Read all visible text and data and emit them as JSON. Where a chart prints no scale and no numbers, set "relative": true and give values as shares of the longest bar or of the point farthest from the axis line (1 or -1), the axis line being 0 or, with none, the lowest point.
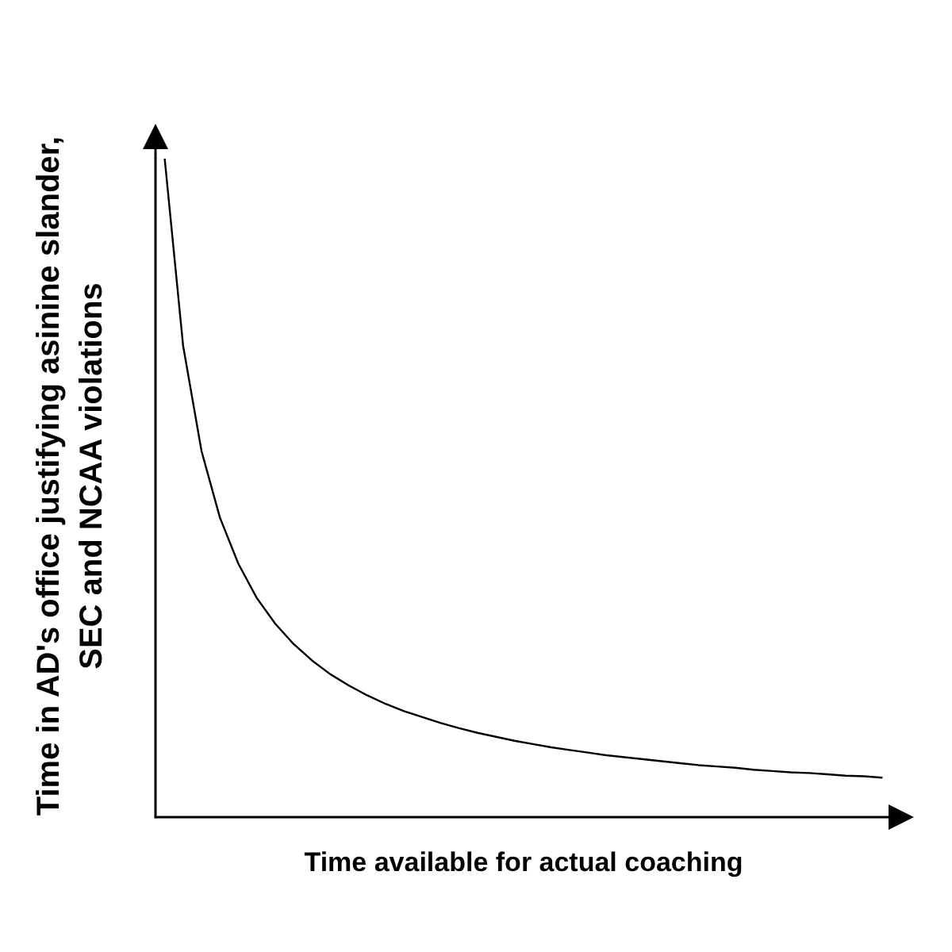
{
  "chart_data": {
    "type": "line",
    "relative": true,
    "color": "#000000",
    "marker": "none",
    "grid": false,
    "xlabel": "Time available for actual coaching",
    "ylabel": "Time in AD's office justifying asinine slander, SEC and NCAA violations",
    "categories": [
      null,
      null,
      null,
      null,
      null,
      null,
      null,
      null,
      null,
      null,
      null,
      null,
      null,
      null,
      null,
      null,
      null,
      null,
      null,
      null,
      null,
      null,
      null,
      null,
      null,
      null,
      null,
      null,
      null,
      null,
      null,
      null,
      null,
      null,
      null,
      null,
      null,
      null,
      null,
      null
    ],
    "values": [
      1.0,
      0.716,
      0.556,
      0.455,
      0.385,
      0.333,
      0.294,
      0.263,
      0.238,
      0.217,
      0.2,
      0.185,
      0.172,
      0.161,
      0.152,
      0.143,
      0.135,
      0.128,
      0.122,
      0.116,
      0.111,
      0.106,
      0.102,
      0.098,
      0.094,
      0.091,
      0.088,
      0.085,
      0.082,
      0.079,
      0.077,
      0.075,
      0.072,
      0.07,
      0.068,
      0.067,
      0.065,
      0.063,
      0.062,
      0.06
    ]
  }
}
